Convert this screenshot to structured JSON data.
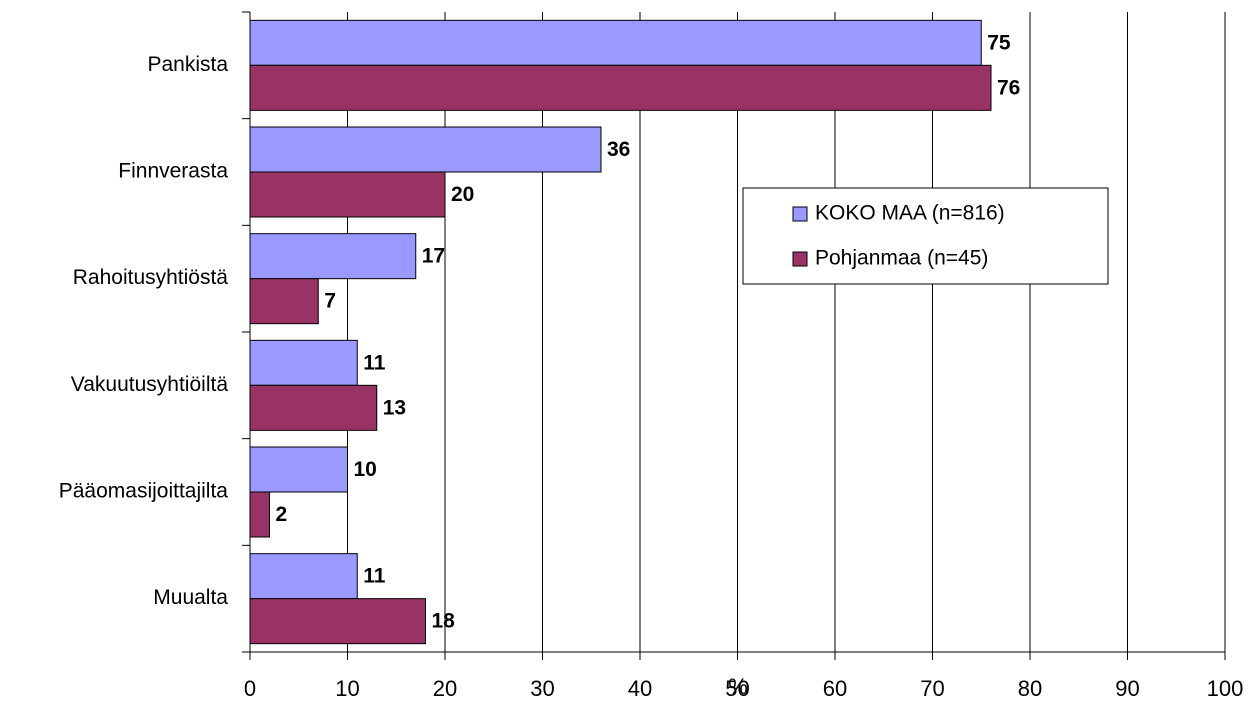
{
  "chart_data": {
    "type": "bar",
    "orientation": "horizontal",
    "categories": [
      "Pankista",
      "Finnverasta",
      "Rahoitusyhtiöstä",
      "Vakuutusyhtiöiltä",
      "Pääomasijoittajilta",
      "Muualta"
    ],
    "series": [
      {
        "name": "KOKO MAA (n=816)",
        "color": "#9999ff",
        "values": [
          75,
          36,
          17,
          11,
          10,
          11
        ]
      },
      {
        "name": "Pohjanmaa (n=45)",
        "color": "#993366",
        "values": [
          76,
          20,
          7,
          13,
          2,
          18
        ]
      }
    ],
    "x_label": "%",
    "xlim": [
      0,
      100
    ],
    "xticks": [
      0,
      10,
      20,
      30,
      40,
      50,
      60,
      70,
      80,
      90,
      100
    ],
    "grid": true,
    "legend": "right"
  }
}
